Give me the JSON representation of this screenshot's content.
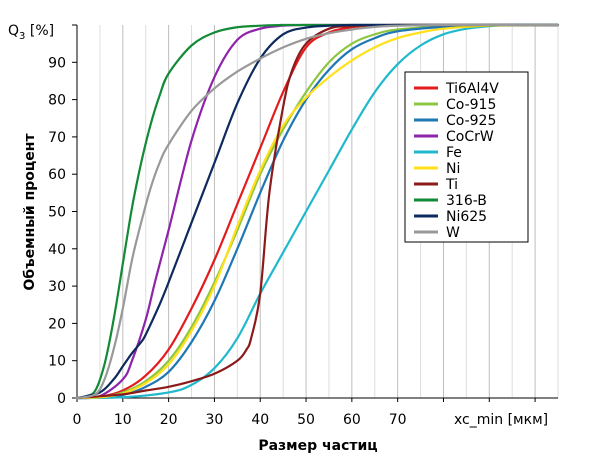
{
  "chart_data": {
    "type": "line",
    "ylabel_main": "Q",
    "ylabel_sub": "3",
    "ylabel_unit": " [%]",
    "xlabel": "Размер частиц",
    "ylabel": "Объемный процент",
    "xunit_label": "xc_min [мкм]",
    "xlim": [
      0,
      105
    ],
    "ylim": [
      0,
      100
    ],
    "x_ticks": [
      "0",
      "10",
      "20",
      "30",
      "40",
      "50",
      "60",
      "70"
    ],
    "y_ticks": [
      "0",
      "10",
      "20",
      "30",
      "40",
      "50",
      "60",
      "70",
      "80",
      "90"
    ],
    "grid": "vertical",
    "legend_position": "right",
    "series": [
      {
        "name": "Ti6Al4V",
        "color": "#e41a1c",
        "x": [
          0,
          5,
          10,
          15,
          20,
          25,
          30,
          35,
          40,
          45,
          50,
          55,
          60,
          65,
          70,
          80,
          90,
          105
        ],
        "y": [
          0,
          0.3,
          2,
          6,
          13,
          24,
          37,
          52,
          67,
          82,
          94,
          98,
          99.4,
          99.8,
          100,
          100,
          100,
          100
        ]
      },
      {
        "name": "Co-915",
        "color": "#8dc63f",
        "x": [
          0,
          5,
          10,
          15,
          20,
          25,
          30,
          35,
          40,
          45,
          50,
          55,
          60,
          65,
          70,
          80,
          90,
          105
        ],
        "y": [
          0,
          0.2,
          1.5,
          4.5,
          10,
          19,
          31,
          45,
          60,
          72,
          82,
          90,
          95,
          97.5,
          98.8,
          99.6,
          100,
          100
        ]
      },
      {
        "name": "Co-925",
        "color": "#1f77b4",
        "x": [
          0,
          5,
          10,
          15,
          20,
          25,
          30,
          35,
          40,
          45,
          50,
          55,
          60,
          65,
          70,
          80,
          90,
          105
        ],
        "y": [
          0,
          0.1,
          0.8,
          3,
          7,
          15,
          26,
          40,
          55,
          69,
          80,
          88,
          93.5,
          96.5,
          98.3,
          99.5,
          100,
          100
        ]
      },
      {
        "name": "CoCrW",
        "color": "#8e24aa",
        "x": [
          0,
          5,
          10,
          12,
          15,
          17,
          20,
          25,
          30,
          35,
          40,
          45,
          50,
          60,
          105
        ],
        "y": [
          0,
          0.5,
          5,
          10,
          21,
          31,
          45,
          69,
          86,
          96,
          99,
          99.8,
          100,
          100,
          100
        ]
      },
      {
        "name": "Fe",
        "color": "#1fb8cc",
        "x": [
          0,
          10,
          20,
          25,
          30,
          35,
          40,
          45,
          50,
          55,
          60,
          65,
          70,
          75,
          80,
          85,
          90,
          95,
          105
        ],
        "y": [
          0,
          0.2,
          1.5,
          3.5,
          8,
          16,
          28,
          39,
          50,
          61,
          72,
          82,
          89.5,
          94.5,
          97.5,
          99,
          99.7,
          100,
          100
        ]
      },
      {
        "name": "Ni",
        "color": "#ffe01a",
        "x": [
          0,
          5,
          10,
          15,
          20,
          25,
          30,
          35,
          40,
          45,
          50,
          55,
          60,
          65,
          70,
          75,
          80,
          90,
          105
        ],
        "y": [
          0,
          0.2,
          1.2,
          4,
          9,
          18,
          30,
          46,
          61,
          73,
          80.5,
          86,
          90.5,
          94,
          96.5,
          98,
          99,
          99.8,
          100
        ]
      },
      {
        "name": "Ti",
        "color": "#8b1a1a",
        "x": [
          0,
          10,
          15,
          20,
          25,
          30,
          35,
          37,
          38,
          40,
          42,
          45,
          47,
          50,
          55,
          60,
          70,
          105
        ],
        "y": [
          0,
          1,
          2,
          3,
          4.5,
          6.5,
          10,
          13,
          16,
          28,
          55,
          78,
          88,
          95,
          99,
          99.7,
          100,
          100
        ]
      },
      {
        "name": "316-B",
        "color": "#138a36",
        "x": [
          0,
          2,
          4,
          6,
          8,
          10,
          12,
          14,
          16,
          18,
          20,
          25,
          30,
          35,
          40,
          45,
          50,
          105
        ],
        "y": [
          0,
          0.5,
          2,
          9,
          21,
          36,
          51,
          63,
          73,
          81,
          87,
          94.5,
          98,
          99.4,
          99.8,
          100,
          100,
          100
        ]
      },
      {
        "name": "Ni625",
        "color": "#0d2a5e",
        "x": [
          0,
          5,
          8,
          10,
          12,
          14,
          15,
          18,
          20,
          25,
          30,
          35,
          40,
          45,
          50,
          55,
          60,
          70,
          105
        ],
        "y": [
          0,
          1.5,
          5,
          8.5,
          12,
          15,
          17,
          25,
          31,
          47,
          63,
          79,
          91,
          97.5,
          99.3,
          99.8,
          100,
          100,
          100
        ]
      },
      {
        "name": "W",
        "color": "#999999",
        "x": [
          0,
          4,
          6,
          8,
          10,
          12,
          14,
          16,
          18,
          20,
          25,
          30,
          35,
          40,
          45,
          50,
          55,
          60,
          65,
          70,
          80,
          105
        ],
        "y": [
          0,
          1,
          5,
          13,
          24,
          37,
          47,
          56,
          63,
          68,
          77,
          83,
          87.5,
          91,
          94,
          96.3,
          97.8,
          98.8,
          99.5,
          99.8,
          100,
          100
        ]
      }
    ]
  }
}
